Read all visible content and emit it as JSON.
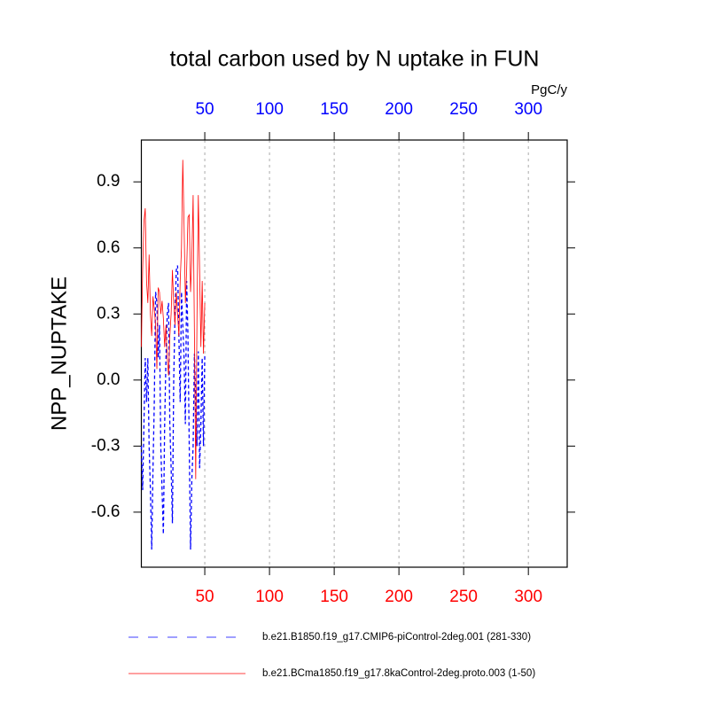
{
  "chart_data": {
    "type": "line",
    "title": "total carbon used by N uptake in FUN",
    "ylabel": "NPP_NUPTAKE",
    "units": "PgC/y",
    "x": [
      1,
      2,
      3,
      4,
      5,
      6,
      7,
      8,
      9,
      10,
      11,
      12,
      13,
      14,
      15,
      16,
      17,
      18,
      19,
      20,
      21,
      22,
      23,
      24,
      25,
      26,
      27,
      28,
      29,
      30,
      31,
      32,
      33,
      34,
      35,
      36,
      37,
      38,
      39,
      40,
      41,
      42,
      43,
      44,
      45,
      46,
      47,
      48,
      49,
      50
    ],
    "xlim": [
      1,
      330
    ],
    "ylim": [
      -0.85,
      1.09
    ],
    "xticks": [
      50,
      100,
      150,
      200,
      250,
      300
    ],
    "yticks": [
      0.9,
      0.6,
      0.3,
      {
        "value": 0,
        "label": "0.0"
      },
      -0.3,
      -0.6
    ],
    "top_tick_color": "#0000ff",
    "bottom_tick_color": "#ff0000",
    "grid": true,
    "series": [
      {
        "name": "b.e21.B1850.f19_g17.CMIP6-piControl-2deg.001 (281-330)",
        "color": "#0000ff",
        "dash": true,
        "values": [
          -0.3,
          -0.5,
          -0.2,
          0.1,
          -0.1,
          0.1,
          -0.3,
          -0.5,
          -0.77,
          -0.4,
          -0.1,
          0.4,
          0.35,
          0.1,
          0.25,
          -0.3,
          -0.5,
          -0.7,
          -0.2,
          0.1,
          0.3,
          0.35,
          -0.2,
          -0.4,
          -0.65,
          0.0,
          0.3,
          0.5,
          0.52,
          0.2,
          -0.1,
          0.4,
          0.25,
          0.1,
          -0.2,
          0.45,
          0.2,
          -0.3,
          -0.77,
          -0.45,
          -0.3,
          0.12,
          -0.1,
          -0.3,
          0.13,
          -0.4,
          -0.2,
          0.1,
          -0.3,
          0.12
        ]
      },
      {
        "name": "b.e21.BCma1850.f19_g17.8kaControl-2deg.proto.003 (1-50)",
        "color": "#ff0000",
        "dash": false,
        "values": [
          0.15,
          0.5,
          0.72,
          0.78,
          0.45,
          0.35,
          0.57,
          0.3,
          0.2,
          0.38,
          0.32,
          0.25,
          0.05,
          0.42,
          0.4,
          0.3,
          0.36,
          0.28,
          0.15,
          0.25,
          0.1,
          0.02,
          0.2,
          0.3,
          0.5,
          0.35,
          0.25,
          0.4,
          0.3,
          0.2,
          0.45,
          0.6,
          1.0,
          0.7,
          0.35,
          0.5,
          0.74,
          0.75,
          0.4,
          0.55,
          0.84,
          0.2,
          -0.45,
          0.3,
          0.84,
          0.5,
          0.15,
          0.45,
          0.12,
          0.35
        ]
      }
    ]
  }
}
